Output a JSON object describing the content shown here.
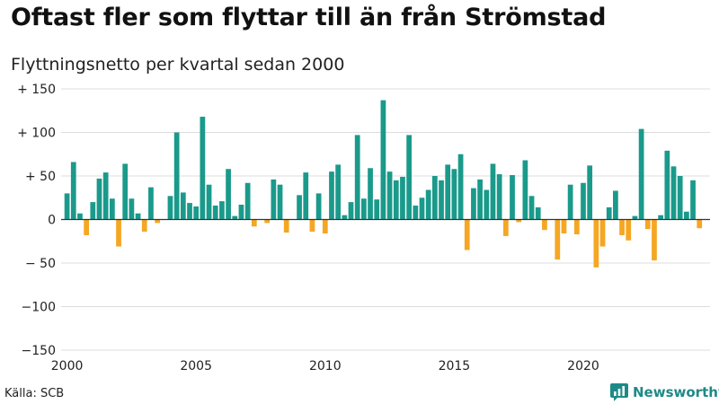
{
  "title": "Oftast fler som flyttar till än från Strömstad",
  "subtitle": "Flyttningsnetto per kvartal sedan 2000",
  "source": "Källa: SCB",
  "brand": {
    "name": "Newsworthy",
    "icon": "newsworthy-logo-icon"
  },
  "colors": {
    "positive": "#1a9a8b",
    "negative": "#f5a623",
    "grid": "#dddddd",
    "zero_line": "#333333",
    "brand": "#1e8a87"
  },
  "chart_data": {
    "type": "bar",
    "title": "Oftast fler som flyttar till än från Strömstad",
    "subtitle": "Flyttningsnetto per kvartal sedan 2000",
    "xlabel": "",
    "ylabel": "",
    "ylim": [
      -150,
      150
    ],
    "yticks": [
      150,
      100,
      50,
      0,
      -50,
      -100,
      -150
    ],
    "ytick_labels": [
      "+ 150",
      "+ 100",
      "+  50",
      "0",
      "− 50",
      "−100",
      "−150"
    ],
    "xtick_labels": [
      "2000",
      "2005",
      "2010",
      "2015",
      "2020"
    ],
    "grid": true,
    "legend": "none",
    "x_start": "2000 Q1",
    "frequency": "quarterly",
    "categories": [
      "2000 Q1",
      "2000 Q2",
      "2000 Q3",
      "2000 Q4",
      "2001 Q1",
      "2001 Q2",
      "2001 Q3",
      "2001 Q4",
      "2002 Q1",
      "2002 Q2",
      "2002 Q3",
      "2002 Q4",
      "2003 Q1",
      "2003 Q2",
      "2003 Q3",
      "2003 Q4",
      "2004 Q1",
      "2004 Q2",
      "2004 Q3",
      "2004 Q4",
      "2005 Q1",
      "2005 Q2",
      "2005 Q3",
      "2005 Q4",
      "2006 Q1",
      "2006 Q2",
      "2006 Q3",
      "2006 Q4",
      "2007 Q1",
      "2007 Q2",
      "2007 Q3",
      "2007 Q4",
      "2008 Q1",
      "2008 Q2",
      "2008 Q3",
      "2008 Q4",
      "2009 Q1",
      "2009 Q2",
      "2009 Q3",
      "2009 Q4",
      "2010 Q1",
      "2010 Q2",
      "2010 Q3",
      "2010 Q4",
      "2011 Q1",
      "2011 Q2",
      "2011 Q3",
      "2011 Q4",
      "2012 Q1",
      "2012 Q2",
      "2012 Q3",
      "2012 Q4",
      "2013 Q1",
      "2013 Q2",
      "2013 Q3",
      "2013 Q4",
      "2014 Q1",
      "2014 Q2",
      "2014 Q3",
      "2014 Q4",
      "2015 Q1",
      "2015 Q2",
      "2015 Q3",
      "2015 Q4",
      "2016 Q1",
      "2016 Q2",
      "2016 Q3",
      "2016 Q4",
      "2017 Q1",
      "2017 Q2",
      "2017 Q3",
      "2017 Q4",
      "2018 Q1",
      "2018 Q2",
      "2018 Q3",
      "2018 Q4",
      "2019 Q1",
      "2019 Q2",
      "2019 Q3",
      "2019 Q4",
      "2020 Q1",
      "2020 Q2",
      "2020 Q3",
      "2020 Q4",
      "2021 Q1",
      "2021 Q2",
      "2021 Q3",
      "2021 Q4",
      "2022 Q1",
      "2022 Q2",
      "2022 Q3",
      "2022 Q4",
      "2023 Q1",
      "2023 Q2",
      "2023 Q3",
      "2023 Q4",
      "2024 Q1",
      "2024 Q2",
      "2024 Q3",
      "2024 Q4"
    ],
    "values": [
      30,
      66,
      7,
      -18,
      20,
      47,
      54,
      24,
      -31,
      64,
      24,
      7,
      -14,
      37,
      -4,
      0,
      27,
      100,
      31,
      19,
      15,
      118,
      40,
      16,
      21,
      58,
      4,
      17,
      42,
      -8,
      0,
      -4,
      46,
      40,
      -15,
      0,
      28,
      54,
      -14,
      30,
      -16,
      55,
      63,
      5,
      20,
      97,
      24,
      59,
      23,
      137,
      55,
      45,
      49,
      97,
      16,
      25,
      34,
      50,
      45,
      63,
      58,
      75,
      -35,
      36,
      46,
      34,
      64,
      52,
      -19,
      51,
      -3,
      68,
      27,
      14,
      -12,
      0,
      -46,
      -16,
      40,
      -17,
      42,
      62,
      -55,
      -31,
      14,
      33,
      -18,
      -24,
      4,
      104,
      -11,
      -47,
      5,
      79,
      61,
      50,
      9,
      45,
      -10,
      0
    ]
  }
}
